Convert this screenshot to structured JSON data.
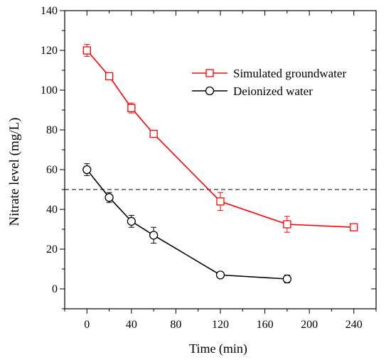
{
  "chart_data": {
    "type": "line",
    "title": "",
    "xlabel": "Time (min)",
    "ylabel": "Nitrate level (mg/L)",
    "xlim": [
      -20,
      260
    ],
    "ylim": [
      -10,
      140
    ],
    "x_ticks": [
      0,
      40,
      80,
      120,
      160,
      200,
      240
    ],
    "y_ticks": [
      0,
      20,
      40,
      60,
      80,
      100,
      120,
      140
    ],
    "x_minor_step": 20,
    "y_minor_step": 10,
    "reference_line": {
      "y": 50,
      "style": "dashed",
      "color": "#000000"
    },
    "legend_position": "top-right",
    "series": [
      {
        "name": "Simulated groundwater",
        "color": "#ff0000",
        "marker": "square",
        "points": [
          {
            "x": 0,
            "y": 120,
            "err": 3
          },
          {
            "x": 20,
            "y": 107,
            "err": 1
          },
          {
            "x": 40,
            "y": 91,
            "err": 2.5
          },
          {
            "x": 60,
            "y": 78,
            "err": 1.5
          },
          {
            "x": 120,
            "y": 44,
            "err": 4.5
          },
          {
            "x": 180,
            "y": 32.5,
            "err": 4
          },
          {
            "x": 240,
            "y": 31,
            "err": 1
          }
        ]
      },
      {
        "name": "Deionized water",
        "color": "#000000",
        "marker": "circle",
        "points": [
          {
            "x": 0,
            "y": 60,
            "err": 3
          },
          {
            "x": 20,
            "y": 46,
            "err": 2.5
          },
          {
            "x": 40,
            "y": 34,
            "err": 3
          },
          {
            "x": 60,
            "y": 27,
            "err": 4
          },
          {
            "x": 120,
            "y": 7,
            "err": 1.5
          },
          {
            "x": 180,
            "y": 5,
            "err": 2
          }
        ]
      }
    ]
  }
}
